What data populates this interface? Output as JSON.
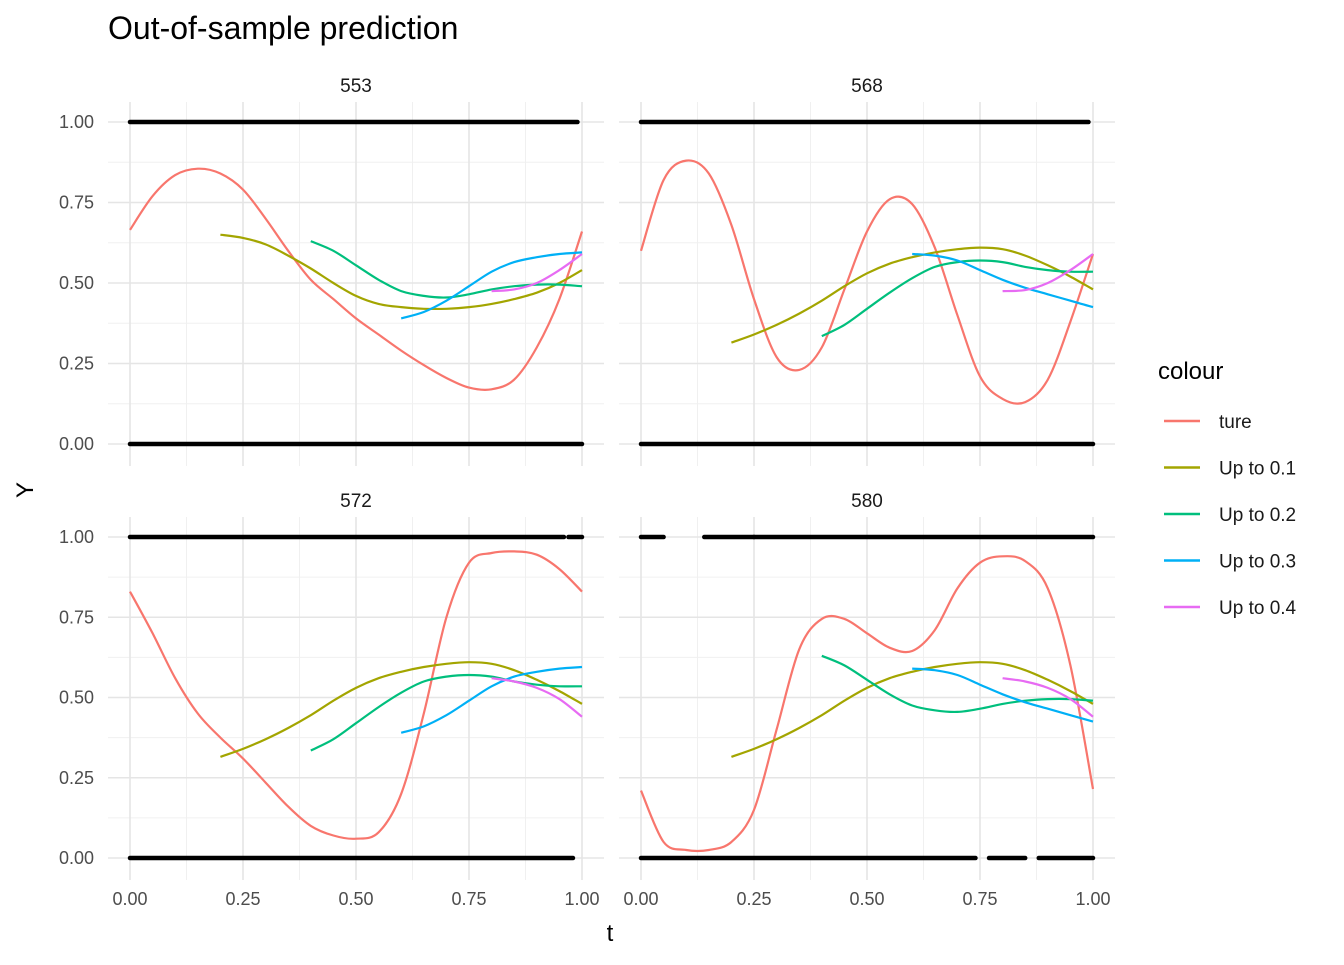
{
  "chart_data": {
    "type": "line",
    "title": "Out-of-sample prediction",
    "xlabel": "t",
    "ylabel": "Y",
    "xlim": [
      0,
      1
    ],
    "ylim": [
      0,
      1
    ],
    "x_ticks": [
      "0.00",
      "0.25",
      "0.50",
      "0.75",
      "1.00"
    ],
    "y_ticks": [
      "0.00",
      "0.25",
      "0.50",
      "0.75",
      "1.00"
    ],
    "grid": true,
    "legend": {
      "title": "colour",
      "position": "right",
      "entries": [
        {
          "label": "ture",
          "color": "#F8766D"
        },
        {
          "label": "Up to 0.1",
          "color": "#A3A500"
        },
        {
          "label": "Up to 0.2",
          "color": "#00BF7D"
        },
        {
          "label": "Up to 0.3",
          "color": "#00B0F6"
        },
        {
          "label": "Up to 0.4",
          "color": "#E76BF3"
        }
      ]
    },
    "panels": [
      {
        "title": "553",
        "series": [
          {
            "name": "ture",
            "x": [
              0,
              0.05,
              0.1,
              0.15,
              0.2,
              0.25,
              0.3,
              0.35,
              0.4,
              0.45,
              0.5,
              0.55,
              0.6,
              0.65,
              0.7,
              0.75,
              0.8,
              0.85,
              0.9,
              0.95,
              1.0
            ],
            "y": [
              0.665,
              0.77,
              0.835,
              0.855,
              0.84,
              0.79,
              0.7,
              0.6,
              0.51,
              0.45,
              0.39,
              0.34,
              0.29,
              0.245,
              0.205,
              0.175,
              0.17,
              0.2,
              0.3,
              0.45,
              0.66
            ]
          },
          {
            "name": "Up to 0.1",
            "x": [
              0.2,
              0.25,
              0.3,
              0.35,
              0.4,
              0.45,
              0.5,
              0.55,
              0.6,
              0.65,
              0.7,
              0.75,
              0.8,
              0.85,
              0.9,
              0.95,
              1.0
            ],
            "y": [
              0.65,
              0.64,
              0.62,
              0.585,
              0.545,
              0.5,
              0.46,
              0.435,
              0.425,
              0.42,
              0.42,
              0.425,
              0.435,
              0.45,
              0.47,
              0.5,
              0.54
            ]
          },
          {
            "name": "Up to 0.2",
            "x": [
              0.4,
              0.45,
              0.5,
              0.55,
              0.6,
              0.65,
              0.7,
              0.75,
              0.8,
              0.85,
              0.9,
              0.95,
              1.0
            ],
            "y": [
              0.63,
              0.6,
              0.555,
              0.51,
              0.475,
              0.46,
              0.455,
              0.465,
              0.48,
              0.49,
              0.495,
              0.495,
              0.49
            ]
          },
          {
            "name": "Up to 0.3",
            "x": [
              0.6,
              0.65,
              0.7,
              0.75,
              0.8,
              0.85,
              0.9,
              0.95,
              1.0
            ],
            "y": [
              0.39,
              0.41,
              0.445,
              0.49,
              0.535,
              0.565,
              0.58,
              0.59,
              0.595
            ]
          },
          {
            "name": "Up to 0.4",
            "x": [
              0.8,
              0.85,
              0.9,
              0.95,
              1.0
            ],
            "y": [
              0.475,
              0.48,
              0.5,
              0.54,
              0.59
            ]
          }
        ],
        "points": {
          "y1_coverage": [
            [
              0,
              0.99
            ]
          ],
          "y0_coverage": [
            [
              0,
              1.0
            ]
          ]
        }
      },
      {
        "title": "568",
        "series": [
          {
            "name": "ture",
            "x": [
              0,
              0.05,
              0.1,
              0.15,
              0.2,
              0.25,
              0.3,
              0.35,
              0.4,
              0.45,
              0.5,
              0.55,
              0.6,
              0.65,
              0.7,
              0.75,
              0.8,
              0.85,
              0.9,
              0.95,
              1.0
            ],
            "y": [
              0.6,
              0.82,
              0.88,
              0.84,
              0.68,
              0.45,
              0.27,
              0.23,
              0.3,
              0.48,
              0.66,
              0.76,
              0.745,
              0.61,
              0.4,
              0.21,
              0.14,
              0.13,
              0.2,
              0.38,
              0.59
            ]
          },
          {
            "name": "Up to 0.1",
            "x": [
              0.2,
              0.25,
              0.3,
              0.35,
              0.4,
              0.45,
              0.5,
              0.55,
              0.6,
              0.65,
              0.7,
              0.75,
              0.8,
              0.85,
              0.9,
              0.95,
              1.0
            ],
            "y": [
              0.315,
              0.34,
              0.37,
              0.405,
              0.445,
              0.49,
              0.53,
              0.56,
              0.58,
              0.595,
              0.605,
              0.61,
              0.605,
              0.585,
              0.555,
              0.52,
              0.48
            ]
          },
          {
            "name": "Up to 0.2",
            "x": [
              0.4,
              0.45,
              0.5,
              0.55,
              0.6,
              0.65,
              0.7,
              0.75,
              0.8,
              0.85,
              0.9,
              0.95,
              1.0
            ],
            "y": [
              0.335,
              0.37,
              0.42,
              0.47,
              0.515,
              0.55,
              0.565,
              0.57,
              0.565,
              0.55,
              0.54,
              0.535,
              0.535
            ]
          },
          {
            "name": "Up to 0.3",
            "x": [
              0.6,
              0.65,
              0.7,
              0.75,
              0.8,
              0.85,
              0.9,
              0.95,
              1.0
            ],
            "y": [
              0.59,
              0.585,
              0.57,
              0.54,
              0.51,
              0.485,
              0.465,
              0.445,
              0.425
            ]
          },
          {
            "name": "Up to 0.4",
            "x": [
              0.8,
              0.85,
              0.9,
              0.95,
              1.0
            ],
            "y": [
              0.475,
              0.478,
              0.5,
              0.54,
              0.59
            ]
          }
        ],
        "points": {
          "y1_coverage": [
            [
              0,
              0.99
            ]
          ],
          "y0_coverage": [
            [
              0,
              1.0
            ]
          ]
        }
      },
      {
        "title": "572",
        "series": [
          {
            "name": "ture",
            "x": [
              0,
              0.05,
              0.1,
              0.15,
              0.2,
              0.25,
              0.3,
              0.35,
              0.4,
              0.45,
              0.5,
              0.55,
              0.6,
              0.65,
              0.7,
              0.75,
              0.8,
              0.85,
              0.9,
              0.95,
              1.0
            ],
            "y": [
              0.83,
              0.7,
              0.56,
              0.45,
              0.375,
              0.31,
              0.235,
              0.16,
              0.1,
              0.07,
              0.06,
              0.08,
              0.2,
              0.45,
              0.75,
              0.92,
              0.95,
              0.955,
              0.945,
              0.9,
              0.83
            ]
          },
          {
            "name": "Up to 0.1",
            "x": [
              0.2,
              0.25,
              0.3,
              0.35,
              0.4,
              0.45,
              0.5,
              0.55,
              0.6,
              0.65,
              0.7,
              0.75,
              0.8,
              0.85,
              0.9,
              0.95,
              1.0
            ],
            "y": [
              0.315,
              0.34,
              0.37,
              0.405,
              0.445,
              0.49,
              0.53,
              0.56,
              0.58,
              0.595,
              0.605,
              0.61,
              0.605,
              0.585,
              0.555,
              0.52,
              0.48
            ]
          },
          {
            "name": "Up to 0.2",
            "x": [
              0.4,
              0.45,
              0.5,
              0.55,
              0.6,
              0.65,
              0.7,
              0.75,
              0.8,
              0.85,
              0.9,
              0.95,
              1.0
            ],
            "y": [
              0.335,
              0.37,
              0.42,
              0.47,
              0.515,
              0.55,
              0.565,
              0.57,
              0.565,
              0.55,
              0.54,
              0.535,
              0.535
            ]
          },
          {
            "name": "Up to 0.3",
            "x": [
              0.6,
              0.65,
              0.7,
              0.75,
              0.8,
              0.85,
              0.9,
              0.95,
              1.0
            ],
            "y": [
              0.39,
              0.41,
              0.445,
              0.49,
              0.535,
              0.565,
              0.58,
              0.59,
              0.595
            ]
          },
          {
            "name": "Up to 0.4",
            "x": [
              0.8,
              0.85,
              0.9,
              0.95,
              1.0
            ],
            "y": [
              0.56,
              0.55,
              0.53,
              0.495,
              0.44
            ]
          }
        ],
        "points": {
          "y1_coverage": [
            [
              0,
              0.96
            ],
            [
              0.97,
              1.0
            ]
          ],
          "y0_coverage": [
            [
              0,
              0.98
            ]
          ]
        }
      },
      {
        "title": "580",
        "series": [
          {
            "name": "ture",
            "x": [
              0,
              0.05,
              0.1,
              0.15,
              0.2,
              0.25,
              0.3,
              0.35,
              0.4,
              0.45,
              0.5,
              0.55,
              0.6,
              0.65,
              0.7,
              0.75,
              0.8,
              0.85,
              0.9,
              0.95,
              1.0
            ],
            "y": [
              0.21,
              0.05,
              0.025,
              0.025,
              0.05,
              0.15,
              0.4,
              0.65,
              0.745,
              0.745,
              0.7,
              0.655,
              0.645,
              0.71,
              0.84,
              0.92,
              0.94,
              0.925,
              0.84,
              0.6,
              0.215
            ]
          },
          {
            "name": "Up to 0.1",
            "x": [
              0.2,
              0.25,
              0.3,
              0.35,
              0.4,
              0.45,
              0.5,
              0.55,
              0.6,
              0.65,
              0.7,
              0.75,
              0.8,
              0.85,
              0.9,
              0.95,
              1.0
            ],
            "y": [
              0.315,
              0.34,
              0.37,
              0.405,
              0.445,
              0.49,
              0.53,
              0.56,
              0.58,
              0.595,
              0.605,
              0.61,
              0.605,
              0.585,
              0.555,
              0.52,
              0.48
            ]
          },
          {
            "name": "Up to 0.2",
            "x": [
              0.4,
              0.45,
              0.5,
              0.55,
              0.6,
              0.65,
              0.7,
              0.75,
              0.8,
              0.85,
              0.9,
              0.95,
              1.0
            ],
            "y": [
              0.63,
              0.6,
              0.555,
              0.51,
              0.475,
              0.46,
              0.455,
              0.465,
              0.48,
              0.49,
              0.495,
              0.495,
              0.49
            ]
          },
          {
            "name": "Up to 0.3",
            "x": [
              0.6,
              0.65,
              0.7,
              0.75,
              0.8,
              0.85,
              0.9,
              0.95,
              1.0
            ],
            "y": [
              0.59,
              0.585,
              0.57,
              0.54,
              0.51,
              0.485,
              0.465,
              0.445,
              0.425
            ]
          },
          {
            "name": "Up to 0.4",
            "x": [
              0.8,
              0.85,
              0.9,
              0.95,
              1.0
            ],
            "y": [
              0.56,
              0.55,
              0.53,
              0.495,
              0.44
            ]
          }
        ],
        "points": {
          "y1_coverage": [
            [
              0.0,
              0.05
            ],
            [
              0.14,
              0.25
            ],
            [
              0.25,
              1.0
            ]
          ],
          "y0_coverage": [
            [
              0,
              0.74
            ],
            [
              0.77,
              0.85
            ],
            [
              0.88,
              1.0
            ]
          ]
        }
      }
    ]
  }
}
